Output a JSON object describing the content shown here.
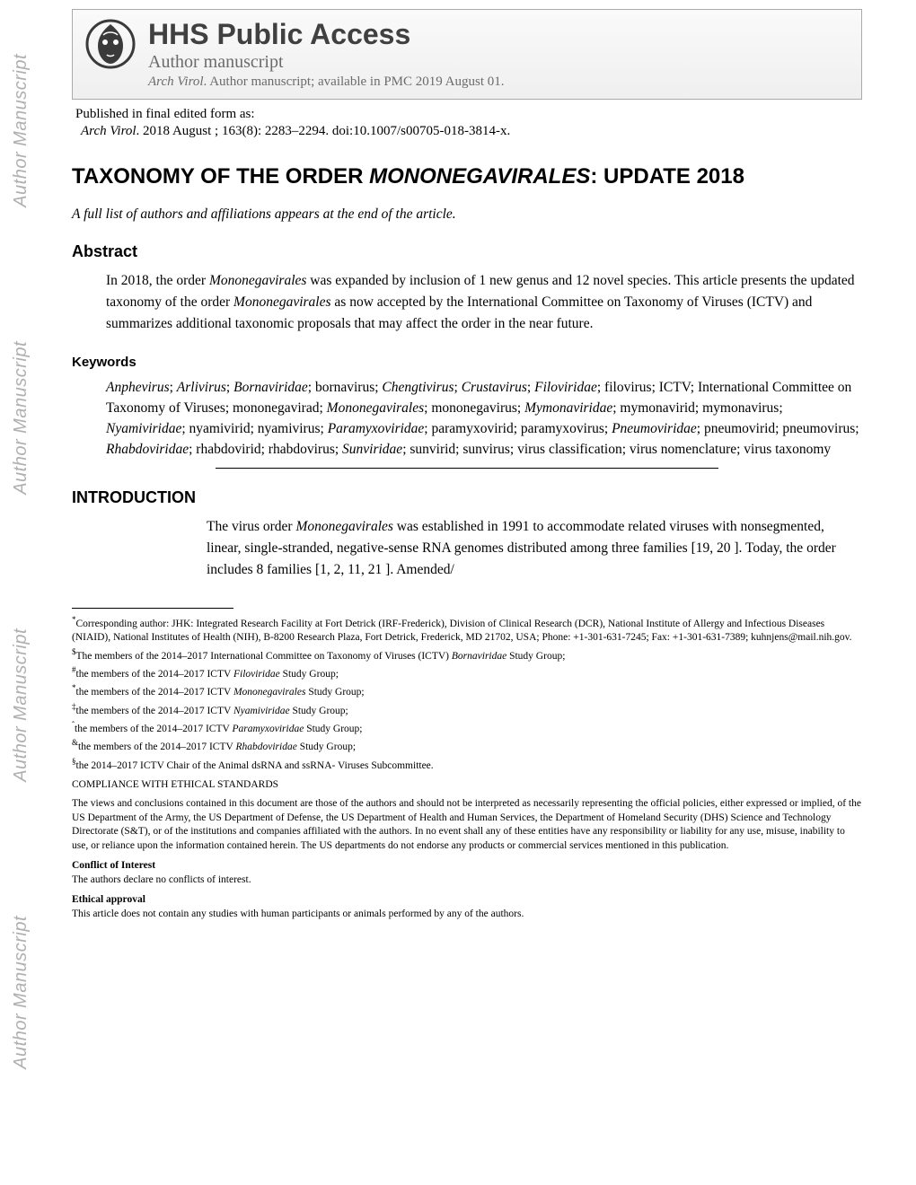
{
  "sidebar_label": "Author Manuscript",
  "header": {
    "brand_title": "HHS Public Access",
    "author_manuscript": "Author manuscript",
    "journal_abbrev": "Arch Virol",
    "availability": ". Author manuscript; available in PMC 2019 August 01."
  },
  "publication": {
    "pub_label": "Published in final edited form as:",
    "journal": "Arch Virol",
    "citation_rest": ". 2018 August ; 163(8): 2283–2294. doi:10.1007/s00705-018-3814-x."
  },
  "article": {
    "title_pre": "TAXONOMY OF THE ORDER ",
    "title_ital": "MONONEGAVIRALES",
    "title_post": ": UPDATE 2018",
    "author_note": "A full list of authors and affiliations appears at the end of the article."
  },
  "abstract": {
    "heading": "Abstract",
    "p1_a": "In 2018, the order ",
    "p1_b": "Mononegavirales",
    "p1_c": " was expanded by inclusion of 1 new genus and 12 novel species. This article presents the updated taxonomy of the order ",
    "p1_d": "Mononegavirales",
    "p1_e": " as now accepted by the International Committee on Taxonomy of Viruses (ICTV) and summarizes additional taxonomic proposals that may affect the order in the near future."
  },
  "keywords": {
    "heading": "Keywords",
    "body_segments": [
      {
        "t": "Anphevirus",
        "i": true
      },
      {
        "t": "; "
      },
      {
        "t": "Arlivirus",
        "i": true
      },
      {
        "t": "; "
      },
      {
        "t": "Bornaviridae",
        "i": true
      },
      {
        "t": "; bornavirus; "
      },
      {
        "t": "Chengtivirus",
        "i": true
      },
      {
        "t": "; "
      },
      {
        "t": "Crustavirus",
        "i": true
      },
      {
        "t": "; "
      },
      {
        "t": "Filoviridae",
        "i": true
      },
      {
        "t": "; filovirus; ICTV; International Committee on Taxonomy of Viruses; mononegavirad; "
      },
      {
        "t": "Mononegavirales",
        "i": true
      },
      {
        "t": "; mononegavirus; "
      },
      {
        "t": "Mymonaviridae",
        "i": true
      },
      {
        "t": "; mymonavirid; mymonavirus; "
      },
      {
        "t": "Nyamiviridae",
        "i": true
      },
      {
        "t": "; nyamivirid; nyamivirus; "
      },
      {
        "t": "Paramyxoviridae",
        "i": true
      },
      {
        "t": "; paramyxovirid; paramyxovirus; "
      },
      {
        "t": "Pneumoviridae",
        "i": true
      },
      {
        "t": "; pneumovirid; pneumovirus; "
      },
      {
        "t": "Rhabdoviridae",
        "i": true
      },
      {
        "t": "; rhabdovirid; rhabdovirus; "
      },
      {
        "t": "Sunviridae",
        "i": true
      },
      {
        "t": "; sunvirid; sunvirus; virus classification; virus nomenclature; virus taxonomy"
      }
    ]
  },
  "introduction": {
    "heading": "INTRODUCTION",
    "p1_a": "The virus order ",
    "p1_b": "Mononegavirales",
    "p1_c": " was established in 1991 to accommodate related viruses with nonsegmented, linear, single-stranded, negative-sense RNA genomes distributed among three families [19, 20 ]. Today, the order includes 8 families [1, 2, 11, 21 ]. Amended/"
  },
  "footnotes": {
    "corresponding_sup": "*",
    "corresponding": "Corresponding author: JHK: Integrated Research Facility at Fort Detrick (IRF-Frederick), Division of Clinical Research (DCR), National Institute of Allergy and Infectious Diseases (NIAID), National Institutes of Health (NIH), B-8200 Research Plaza, Fort Detrick, Frederick, MD 21702, USA; Phone: +1-301-631-7245; Fax: +1-301-631-7389; kuhnjens@mail.nih.gov.",
    "lines": [
      {
        "sup": "$",
        "pre": "The members of the 2014–2017 International Committee on Taxonomy of Viruses (ICTV) ",
        "ital": "Bornaviridae",
        "post": " Study Group;"
      },
      {
        "sup": "#",
        "pre": "the members of the 2014–2017 ICTV ",
        "ital": "Filoviridae",
        "post": " Study Group;"
      },
      {
        "sup": "*",
        "pre": "the members of the 2014–2017 ICTV ",
        "ital": "Mononegavirales",
        "post": " Study Group;"
      },
      {
        "sup": "‡",
        "pre": "the members of the 2014–2017 ICTV ",
        "ital": "Nyamiviridae",
        "post": " Study Group;"
      },
      {
        "sup": "ˆ",
        "pre": "the members of the 2014–2017 ICTV ",
        "ital": "Paramyxoviridae",
        "post": " Study Group;"
      },
      {
        "sup": "&",
        "pre": "the members of the 2014–2017 ICTV ",
        "ital": "Rhabdoviridae",
        "post": " Study Group;"
      },
      {
        "sup": "§",
        "pre": "the 2014–2017 ICTV Chair of the Animal dsRNA and ssRNA- Viruses Subcommittee.",
        "ital": "",
        "post": ""
      }
    ],
    "compliance": "COMPLIANCE WITH ETHICAL STANDARDS",
    "disclaimer": "The views and conclusions contained in this document are those of the authors and should not be interpreted as necessarily representing the official policies, either expressed or implied, of the US Department of the Army, the US Department of Defense, the US Department of Health and Human Services, the Department of Homeland Security (DHS) Science and Technology Directorate (S&T), or of the institutions and companies affiliated with the authors. In no event shall any of these entities have any responsibility or liability for any use, misuse, inability to use, or reliance upon the information contained herein. The US departments do not endorse any products or commercial services mentioned in this publication.",
    "coi_heading": "Conflict of Interest",
    "coi_body": "The authors declare no conflicts of interest.",
    "ethical_heading": "Ethical approval",
    "ethical_body": "This article does not contain any studies with human participants or animals performed by any of the authors."
  },
  "colors": {
    "sidebar_text": "#b0b0b0",
    "header_border": "#aaaaaa",
    "header_text": "#404040",
    "body_text": "#000000",
    "logo_bg": "#3a3a3a"
  },
  "typography": {
    "body_font": "Times New Roman",
    "heading_font": "Arial",
    "title_fontsize_pt": 24,
    "h2_fontsize_pt": 18,
    "body_fontsize_pt": 15.5,
    "footnote_fontsize_pt": 11.5
  }
}
